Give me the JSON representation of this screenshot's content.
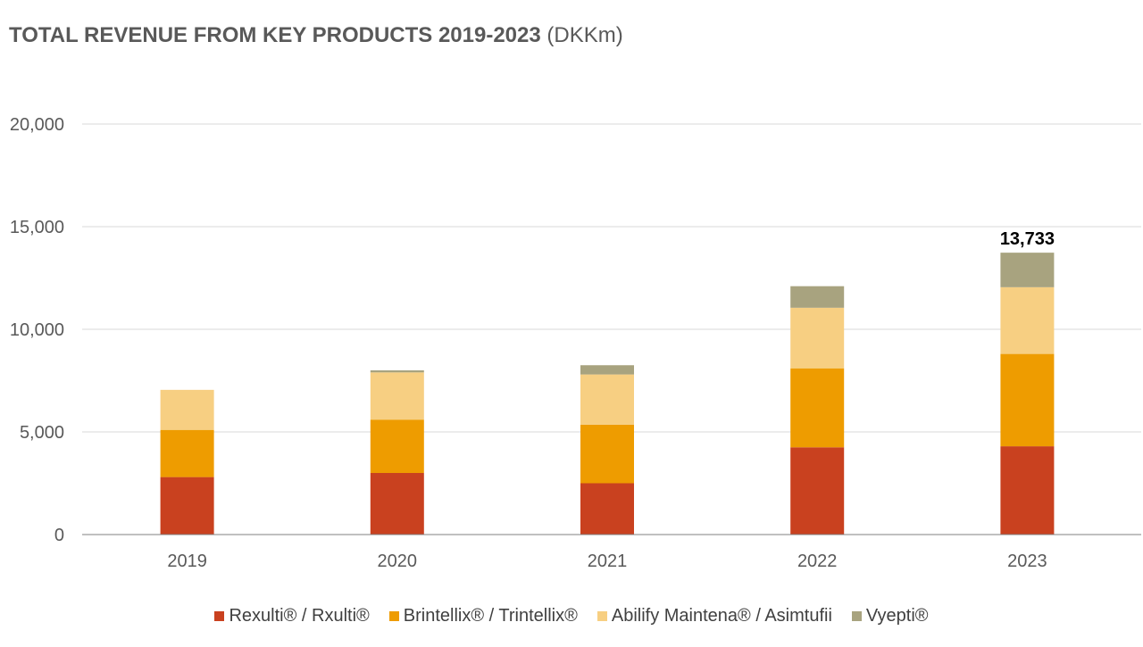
{
  "chart_data": {
    "type": "bar",
    "stacked": true,
    "title": "TOTAL REVENUE FROM KEY PRODUCTS 2019-2023",
    "title_unit": "(DKKm)",
    "xlabel": "",
    "ylabel": "",
    "ylim": [
      0,
      20000
    ],
    "yticks": [
      0,
      5000,
      10000,
      15000,
      20000
    ],
    "ytick_labels": [
      "0",
      "5,000",
      "10,000",
      "15,000",
      "20,000"
    ],
    "grid": true,
    "legend_position": "bottom",
    "categories": [
      "2019",
      "2020",
      "2021",
      "2022",
      "2023"
    ],
    "series": [
      {
        "name": "Rexulti® / Rxulti®",
        "color": "#C9411F",
        "values": [
          2800,
          3000,
          2500,
          4250,
          4300
        ]
      },
      {
        "name": "Brintellix® / Trintellix®",
        "color": "#EE9C00",
        "values": [
          2300,
          2600,
          2850,
          3850,
          4500
        ]
      },
      {
        "name": "Abilify Maintena® / Asimtufii",
        "color": "#F7CF82",
        "values": [
          1950,
          2300,
          2450,
          2950,
          3250
        ]
      },
      {
        "name": "Vyepti®",
        "color": "#A8A37F",
        "values": [
          0,
          100,
          450,
          1050,
          1683
        ]
      }
    ],
    "annotations": [
      {
        "category": "2023",
        "text": "13,733"
      }
    ]
  }
}
